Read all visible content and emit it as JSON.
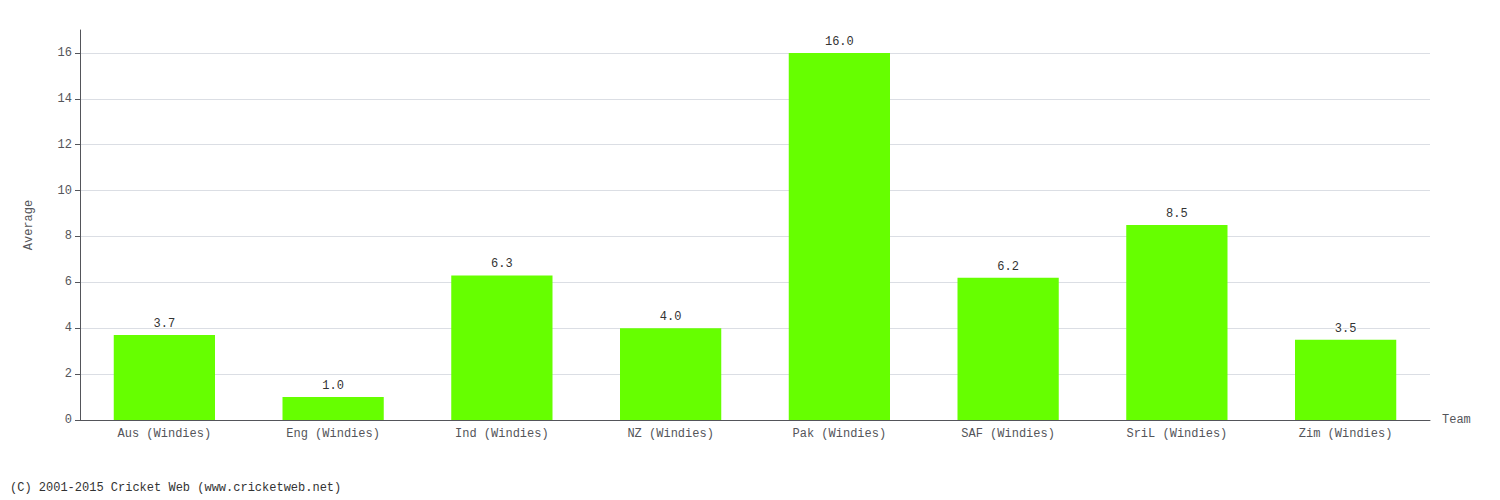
{
  "chart_data": {
    "type": "bar",
    "categories": [
      "Aus (Windies)",
      "Eng (Windies)",
      "Ind (Windies)",
      "NZ (Windies)",
      "Pak (Windies)",
      "SAF (Windies)",
      "SriL (Windies)",
      "Zim (Windies)"
    ],
    "values": [
      3.7,
      1.0,
      6.3,
      4.0,
      16.0,
      6.2,
      8.5,
      3.5
    ],
    "value_labels": [
      "3.7",
      "1.0",
      "6.3",
      "4.0",
      "16.0",
      "6.2",
      "8.5",
      "3.5"
    ],
    "data_labels": true,
    "color": "#66ff00",
    "xlabel": "Team",
    "ylabel": "Average",
    "ylim": [
      0,
      17
    ],
    "yticks": [
      0,
      2,
      4,
      6,
      8,
      10,
      12,
      14,
      16
    ],
    "grid": true,
    "annotations": [
      "(C) 2001-2015 Cricket Web (www.cricketweb.net)"
    ]
  }
}
